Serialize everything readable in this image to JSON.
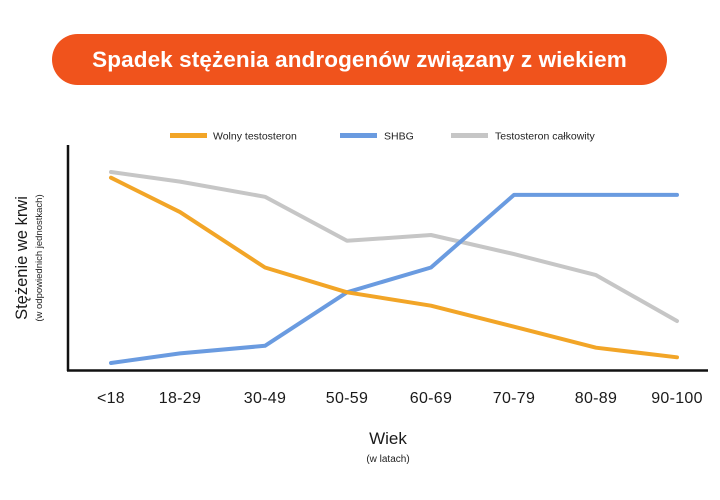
{
  "chart_data": {
    "type": "line",
    "title": "Spadek stężenia androgenów związany z wiekiem",
    "xlabel": "Wiek",
    "xlabel_sub": "(w latach)",
    "ylabel": "Stężenie we krwi",
    "ylabel_sub": "(w odpowiednich jednostkach)",
    "categories": [
      "<18",
      "18-29",
      "30-49",
      "50-59",
      "60-69",
      "70-79",
      "80-89",
      "90-100"
    ],
    "ylim": [
      0,
      100
    ],
    "grid": false,
    "legend_position": "top",
    "series": [
      {
        "name": "Wolny testosteron",
        "color": "#f2a527",
        "values": [
          97,
          79,
          50,
          37,
          30,
          19,
          8,
          3
        ]
      },
      {
        "name": "SHBG",
        "color": "#6a9be0",
        "values": [
          0,
          5,
          9,
          37,
          50,
          88,
          88,
          88
        ]
      },
      {
        "name": "Testosteron całkowity",
        "color": "#c6c6c6",
        "values": [
          100,
          95,
          87,
          64,
          67,
          57,
          46,
          22
        ]
      }
    ]
  }
}
